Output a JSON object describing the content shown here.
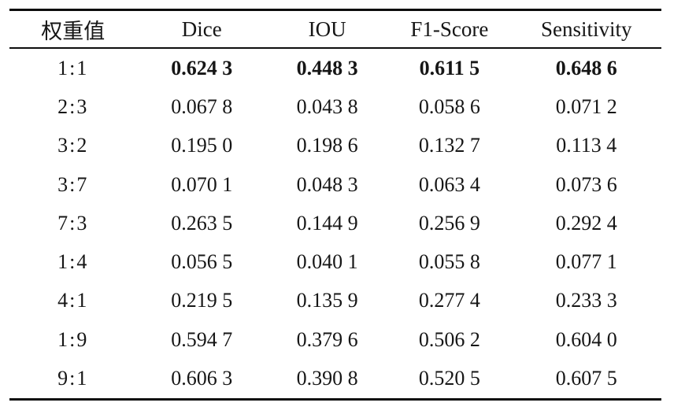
{
  "table": {
    "columns": [
      "权重值",
      "Dice",
      "IOU",
      "F1-Score",
      "Sensitivity"
    ],
    "rows": [
      {
        "label": "1:1",
        "values": [
          "0.624 3",
          "0.448 3",
          "0.611 5",
          "0.648 6"
        ],
        "bold_values": true
      },
      {
        "label": "2:3",
        "values": [
          "0.067 8",
          "0.043 8",
          "0.058 6",
          "0.071 2"
        ],
        "bold_values": false
      },
      {
        "label": "3:2",
        "values": [
          "0.195 0",
          "0.198 6",
          "0.132 7",
          "0.113 4"
        ],
        "bold_values": false
      },
      {
        "label": "3:7",
        "values": [
          "0.070 1",
          "0.048 3",
          "0.063 4",
          "0.073 6"
        ],
        "bold_values": false
      },
      {
        "label": "7:3",
        "values": [
          "0.263 5",
          "0.144 9",
          "0.256 9",
          "0.292 4"
        ],
        "bold_values": false
      },
      {
        "label": "1:4",
        "values": [
          "0.056 5",
          "0.040 1",
          "0.055 8",
          "0.077 1"
        ],
        "bold_values": false
      },
      {
        "label": "4:1",
        "values": [
          "0.219 5",
          "0.135 9",
          "0.277 4",
          "0.233 3"
        ],
        "bold_values": false
      },
      {
        "label": "1:9",
        "values": [
          "0.594 7",
          "0.379 6",
          "0.506 2",
          "0.604 0"
        ],
        "bold_values": false
      },
      {
        "label": "9:1",
        "values": [
          "0.606 3",
          "0.390 8",
          "0.520 5",
          "0.607 5"
        ],
        "bold_values": false
      }
    ],
    "colors": {
      "text": "#161616",
      "rule": "#0d0d0d",
      "background": "#ffffff"
    }
  }
}
